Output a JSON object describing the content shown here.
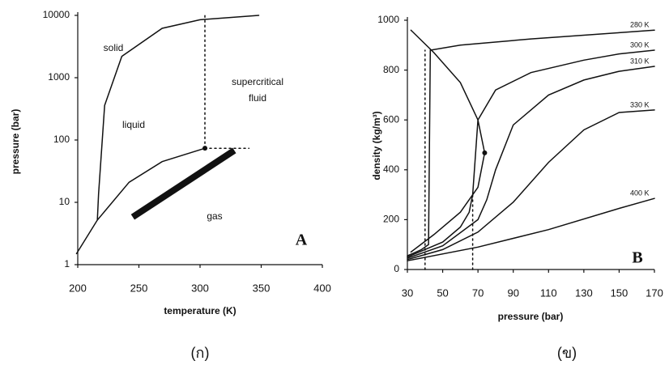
{
  "chart_data": [
    {
      "type": "line",
      "caption": "(ก)",
      "xlabel": "temperature (K)",
      "ylabel": "pressure (bar)",
      "xlim": [
        200,
        400
      ],
      "ylim": [
        1,
        10000
      ],
      "ylog": true,
      "xticks": [
        200,
        250,
        300,
        350,
        400
      ],
      "yticks": [
        1,
        10,
        100,
        1000,
        10000
      ],
      "annotations": [
        "solid",
        "liquid",
        "supercritical",
        "fluid",
        "gas",
        "A"
      ],
      "series": [
        {
          "color": "#111111",
          "x": [
            199,
            216,
            242,
            269,
            304
          ],
          "values": [
            1.5,
            5.2,
            21,
            45,
            73.8
          ]
        },
        {
          "color": "#111111",
          "x": [
            216,
            217,
            222,
            236,
            269,
            300,
            348
          ],
          "values": [
            5.2,
            13.6,
            360,
            2200,
            6200,
            8500,
            10000
          ]
        },
        {
          "color": "#111111",
          "dash": true,
          "x": [
            304,
            304
          ],
          "values": [
            73.8,
            10000
          ]
        },
        {
          "color": "#111111",
          "dash": true,
          "x": [
            304,
            340
          ],
          "values": [
            73.8,
            73.8
          ]
        },
        {
          "color": "#111111",
          "line_width": 8,
          "x": [
            245,
            328
          ],
          "values": [
            5.8,
            68
          ]
        },
        {
          "color": "#111111",
          "marker": true,
          "x": [
            304
          ],
          "values": [
            73.8
          ]
        }
      ]
    },
    {
      "type": "line",
      "caption": "(ข)",
      "xlabel": "pressure (bar)",
      "ylabel": "density (kg/m³)",
      "xlim": [
        30,
        170
      ],
      "ylim": [
        0,
        1000
      ],
      "xticks": [
        30,
        50,
        70,
        90,
        110,
        130,
        150,
        170
      ],
      "yticks": [
        0,
        200,
        400,
        600,
        800,
        1000
      ],
      "annotations": [
        "B"
      ],
      "series": [
        {
          "name": "280 K",
          "color": "#111111",
          "x": [
            30,
            38,
            42,
            43,
            60,
            100,
            150,
            170
          ],
          "values": [
            55,
            80,
            100,
            880,
            900,
            925,
            950,
            960
          ]
        },
        {
          "name": "300 K",
          "color": "#111111",
          "x": [
            30,
            50,
            60,
            65,
            67,
            70,
            80,
            100,
            130,
            150,
            170
          ],
          "values": [
            50,
            110,
            170,
            230,
            300,
            600,
            720,
            790,
            840,
            865,
            880
          ]
        },
        {
          "name": "310 K",
          "color": "#111111",
          "x": [
            30,
            50,
            70,
            75,
            80,
            90,
            110,
            130,
            150,
            170
          ],
          "values": [
            45,
            95,
            200,
            280,
            400,
            580,
            700,
            760,
            795,
            815
          ]
        },
        {
          "name": "330 K",
          "color": "#111111",
          "x": [
            30,
            50,
            70,
            90,
            110,
            130,
            150,
            170
          ],
          "values": [
            40,
            80,
            150,
            270,
            430,
            560,
            630,
            640
          ]
        },
        {
          "name": "400 K",
          "color": "#111111",
          "x": [
            30,
            70,
            110,
            150,
            170
          ],
          "values": [
            35,
            90,
            160,
            245,
            285
          ]
        },
        {
          "color": "#111111",
          "x": [
            32,
            45,
            60,
            70,
            73.8,
            70,
            60,
            45,
            32
          ],
          "values": [
            960,
            870,
            750,
            600,
            468,
            330,
            230,
            140,
            70
          ]
        },
        {
          "color": "#111111",
          "dash": true,
          "x": [
            40,
            40
          ],
          "values": [
            0,
            880
          ]
        },
        {
          "color": "#111111",
          "dash": true,
          "x": [
            67,
            67
          ],
          "values": [
            0,
            300
          ]
        },
        {
          "color": "#111111",
          "marker": true,
          "x": [
            73.8
          ],
          "values": [
            468
          ]
        }
      ]
    }
  ]
}
